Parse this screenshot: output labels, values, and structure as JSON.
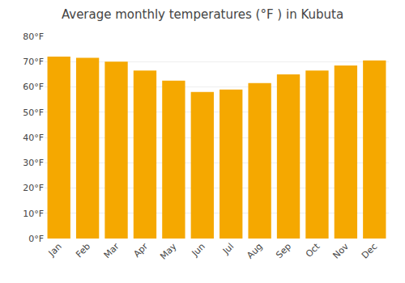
{
  "chart_data": {
    "type": "bar",
    "title": "Average monthly temperatures (°F ) in Kubuta",
    "categories": [
      "Jan",
      "Feb",
      "Mar",
      "Apr",
      "May",
      "Jun",
      "Jul",
      "Aug",
      "Sep",
      "Oct",
      "Nov",
      "Dec"
    ],
    "values": [
      72,
      71.5,
      70,
      66.5,
      62.5,
      58,
      59,
      61.5,
      65,
      66.5,
      68.5,
      70.5
    ],
    "color": "#F5A800",
    "ylim": [
      0,
      80
    ],
    "yticks": [
      {
        "value": 0,
        "label": "0°F"
      },
      {
        "value": 10,
        "label": "10°F"
      },
      {
        "value": 20,
        "label": "20°F"
      },
      {
        "value": 30,
        "label": "30°F"
      },
      {
        "value": 40,
        "label": "40°F"
      },
      {
        "value": 50,
        "label": "50°F"
      },
      {
        "value": 60,
        "label": "60°F"
      },
      {
        "value": 70,
        "label": "70°F"
      },
      {
        "value": 80,
        "label": "80°F"
      }
    ],
    "grid": true
  }
}
